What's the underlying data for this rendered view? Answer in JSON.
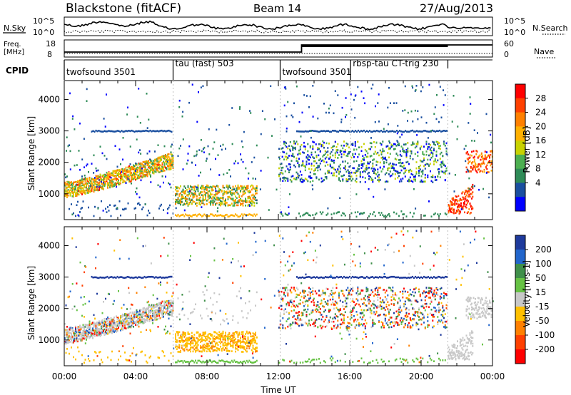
{
  "header": {
    "title": "Blackstone (fitACF)",
    "beam": "Beam 14",
    "date": "27/Aug/2013"
  },
  "top_panel": {
    "nsky_label": "N.Sky",
    "nsearch_label": "N.Search",
    "ytick_top": "10^5",
    "ytick_bottom": "10^0",
    "freq_label_1": "Freq.",
    "freq_label_2": "[MHz]",
    "freq_ticks": [
      "18",
      "8"
    ],
    "nave_label": "Nave",
    "nave_ticks": [
      "60",
      "0"
    ],
    "cpid_label": "CPID",
    "cpid_segments": [
      {
        "label": "twofsound 3501",
        "start_h": 0.0,
        "end_h": 6.1
      },
      {
        "label": "tau (fast) 503",
        "start_h": 6.1,
        "end_h": 12.1
      },
      {
        "label": "twofsound 3501",
        "start_h": 12.1,
        "end_h": 16.05
      },
      {
        "label": "rbsp-tau CT-trig 230",
        "start_h": 16.05,
        "end_h": 21.5
      }
    ]
  },
  "chart_data": [
    {
      "type": "heatmap",
      "name": "power",
      "xlabel": "",
      "ylabel": "Slant Range [km]",
      "xlim": [
        0,
        24
      ],
      "ylim": [
        180,
        4600
      ],
      "yticks": [
        1000,
        2000,
        3000,
        4000
      ],
      "colorbar": {
        "label": "Power [dB]",
        "ticks": [
          "28",
          "24",
          "20",
          "16",
          "12",
          "8",
          "4"
        ],
        "colors": [
          "#ff0000",
          "#ff4000",
          "#ff8000",
          "#ffb000",
          "#c8d200",
          "#4caf50",
          "#2e8b57",
          "#1a4fa0",
          "#0000ff"
        ]
      },
      "features": [
        {
          "t0": 0.0,
          "t1": 6.1,
          "r0": 1050,
          "r1": 2050,
          "level": "high"
        },
        {
          "t0": 6.1,
          "t1": 10.8,
          "r0": 700,
          "r1": 1300,
          "level": "mid"
        },
        {
          "t0": 12.0,
          "t1": 21.5,
          "r0": 1700,
          "r1": 2500,
          "level": "mid"
        },
        {
          "t0": 21.5,
          "t1": 24.0,
          "r0": 350,
          "r1": 2400,
          "level": "high"
        }
      ]
    },
    {
      "type": "heatmap",
      "name": "velocity",
      "xlabel": "Time UT",
      "ylabel": "Slant Range [km]",
      "xlim": [
        0,
        24
      ],
      "ylim": [
        180,
        4600
      ],
      "yticks": [
        1000,
        2000,
        3000,
        4000
      ],
      "xticks": [
        "00:00",
        "04:00",
        "08:00",
        "12:00",
        "16:00",
        "20:00",
        "00:00"
      ],
      "colorbar": {
        "label": "Velocity [m s-1]",
        "ticks": [
          "200",
          "100",
          "50",
          "15",
          "-15",
          "-50",
          "-100",
          "-200"
        ],
        "colors": [
          "#1e3a9c",
          "#2266cc",
          "#3f8f4a",
          "#66c244",
          "#c8c8c8",
          "#ffc000",
          "#ff8000",
          "#ff4000",
          "#ff0000"
        ]
      }
    }
  ]
}
